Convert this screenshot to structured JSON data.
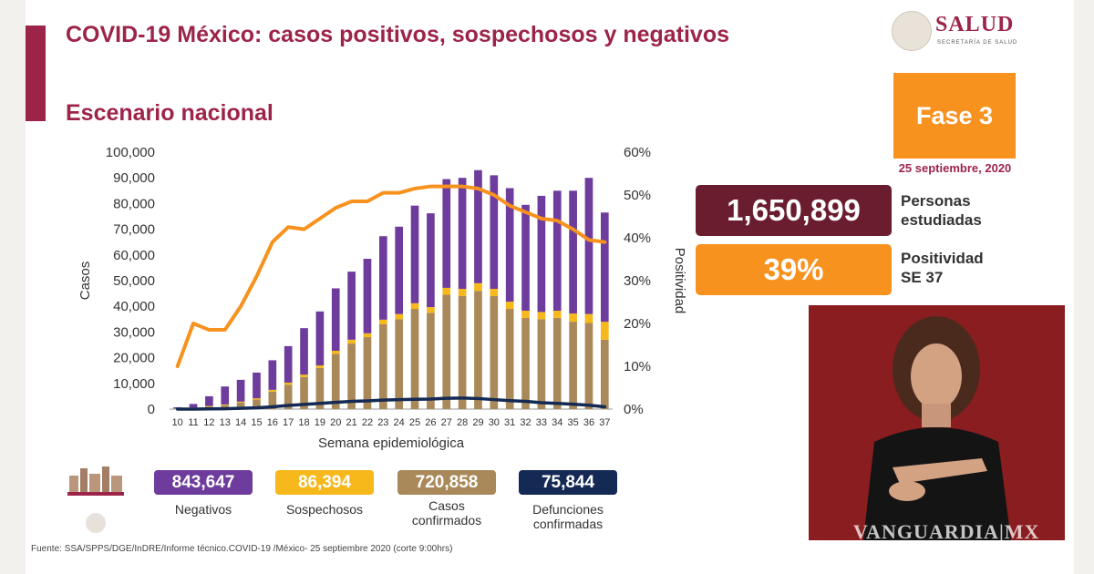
{
  "header": {
    "title": "COVID-19 México: casos positivos, sospechosos y negativos",
    "subtitle": "Escenario nacional"
  },
  "logo": {
    "name": "SALUD",
    "sub": "SECRETARÍA DE SALUD"
  },
  "phase": {
    "label": "Fase 3",
    "date": "25 septiembre, 2020"
  },
  "stats": [
    {
      "value": "1,650,899",
      "label_line1": "Personas",
      "label_line2": "estudiadas",
      "color": "#6a1d2f"
    },
    {
      "value": "39%",
      "label_line1": "Positividad",
      "label_line2": "SE 37",
      "color": "#f7921e"
    }
  ],
  "chart_data": {
    "type": "bar",
    "stacked": true,
    "xlabel": "Semana epidemiológica",
    "ylabel": "Casos",
    "y2label": "Positividad",
    "ylim": [
      0,
      100000
    ],
    "y2lim": [
      0,
      60
    ],
    "yticks": [
      "100,000",
      "90,000",
      "80,000",
      "70,000",
      "60,000",
      "50,000",
      "40,000",
      "30,000",
      "20,000",
      "10,000",
      "0"
    ],
    "y2ticks": [
      "60%",
      "50%",
      "40%",
      "30%",
      "20%",
      "10%",
      "0%"
    ],
    "categories": [
      "10",
      "11",
      "12",
      "13",
      "14",
      "15",
      "16",
      "17",
      "18",
      "19",
      "20",
      "21",
      "22",
      "23",
      "24",
      "25",
      "26",
      "27",
      "28",
      "29",
      "30",
      "31",
      "32",
      "33",
      "34",
      "35",
      "36",
      "37"
    ],
    "series": [
      {
        "name": "Casos confirmados",
        "kind": "bar",
        "color": "#a9895a",
        "values": [
          100,
          400,
          900,
          1500,
          2500,
          3700,
          6800,
          9500,
          12500,
          16000,
          21500,
          25500,
          28000,
          33000,
          35000,
          39000,
          37500,
          44500,
          44000,
          46000,
          44000,
          39000,
          35500,
          35000,
          35500,
          34000,
          33500,
          27000
        ]
      },
      {
        "name": "Sospechosos",
        "kind": "bar",
        "color": "#f7b81b",
        "values": [
          100,
          200,
          300,
          300,
          400,
          500,
          700,
          800,
          900,
          1000,
          1200,
          1500,
          1500,
          1800,
          2000,
          2200,
          2200,
          2700,
          2800,
          3000,
          2800,
          2800,
          2800,
          2800,
          2800,
          3200,
          3500,
          7000
        ]
      },
      {
        "name": "Negativos",
        "kind": "bar",
        "color": "#6e3c9c",
        "values": [
          500,
          1400,
          3800,
          7000,
          8500,
          10000,
          11500,
          14200,
          18100,
          21000,
          24300,
          26500,
          29000,
          32500,
          34000,
          38000,
          36500,
          42300,
          43200,
          44000,
          44200,
          44200,
          41200,
          45200,
          46700,
          47800,
          53000,
          42500
        ]
      },
      {
        "name": "Defunciones",
        "kind": "line",
        "axis": "y",
        "color": "#142a54",
        "values": [
          0,
          20,
          80,
          150,
          300,
          500,
          900,
          1400,
          1800,
          2200,
          2600,
          3000,
          3200,
          3500,
          3700,
          3800,
          3900,
          4200,
          4300,
          4100,
          3700,
          3300,
          3000,
          2500,
          2200,
          1900,
          1500,
          900
        ]
      },
      {
        "name": "Positividad",
        "kind": "line",
        "axis": "y2",
        "color": "#f7921e",
        "values": [
          10,
          20,
          18.5,
          18.5,
          24,
          31,
          39,
          42.5,
          42,
          44.5,
          47,
          48.5,
          48.5,
          50.5,
          50.5,
          51.5,
          52,
          52,
          52,
          51.5,
          50,
          47.5,
          46,
          44.5,
          44,
          42,
          39.5,
          39
        ]
      }
    ]
  },
  "totals": [
    {
      "value": "843,647",
      "label": "Negativos",
      "color": "#6e3c9c"
    },
    {
      "value": "86,394",
      "label": "Sospechosos",
      "color": "#f7b81b"
    },
    {
      "value": "720,858",
      "label": "Casos confirmados",
      "color": "#a9895a"
    },
    {
      "value": "75,844",
      "label": "Defunciones confirmadas",
      "color": "#142a54"
    }
  ],
  "footer": {
    "source": "Fuente: SSA/SPPS/DGE/InDRE/Informe técnico.COVID-19 /México- 25 septiembre 2020 (corte 9:00hrs)"
  },
  "watermark": "VANGUARDIA|MX"
}
